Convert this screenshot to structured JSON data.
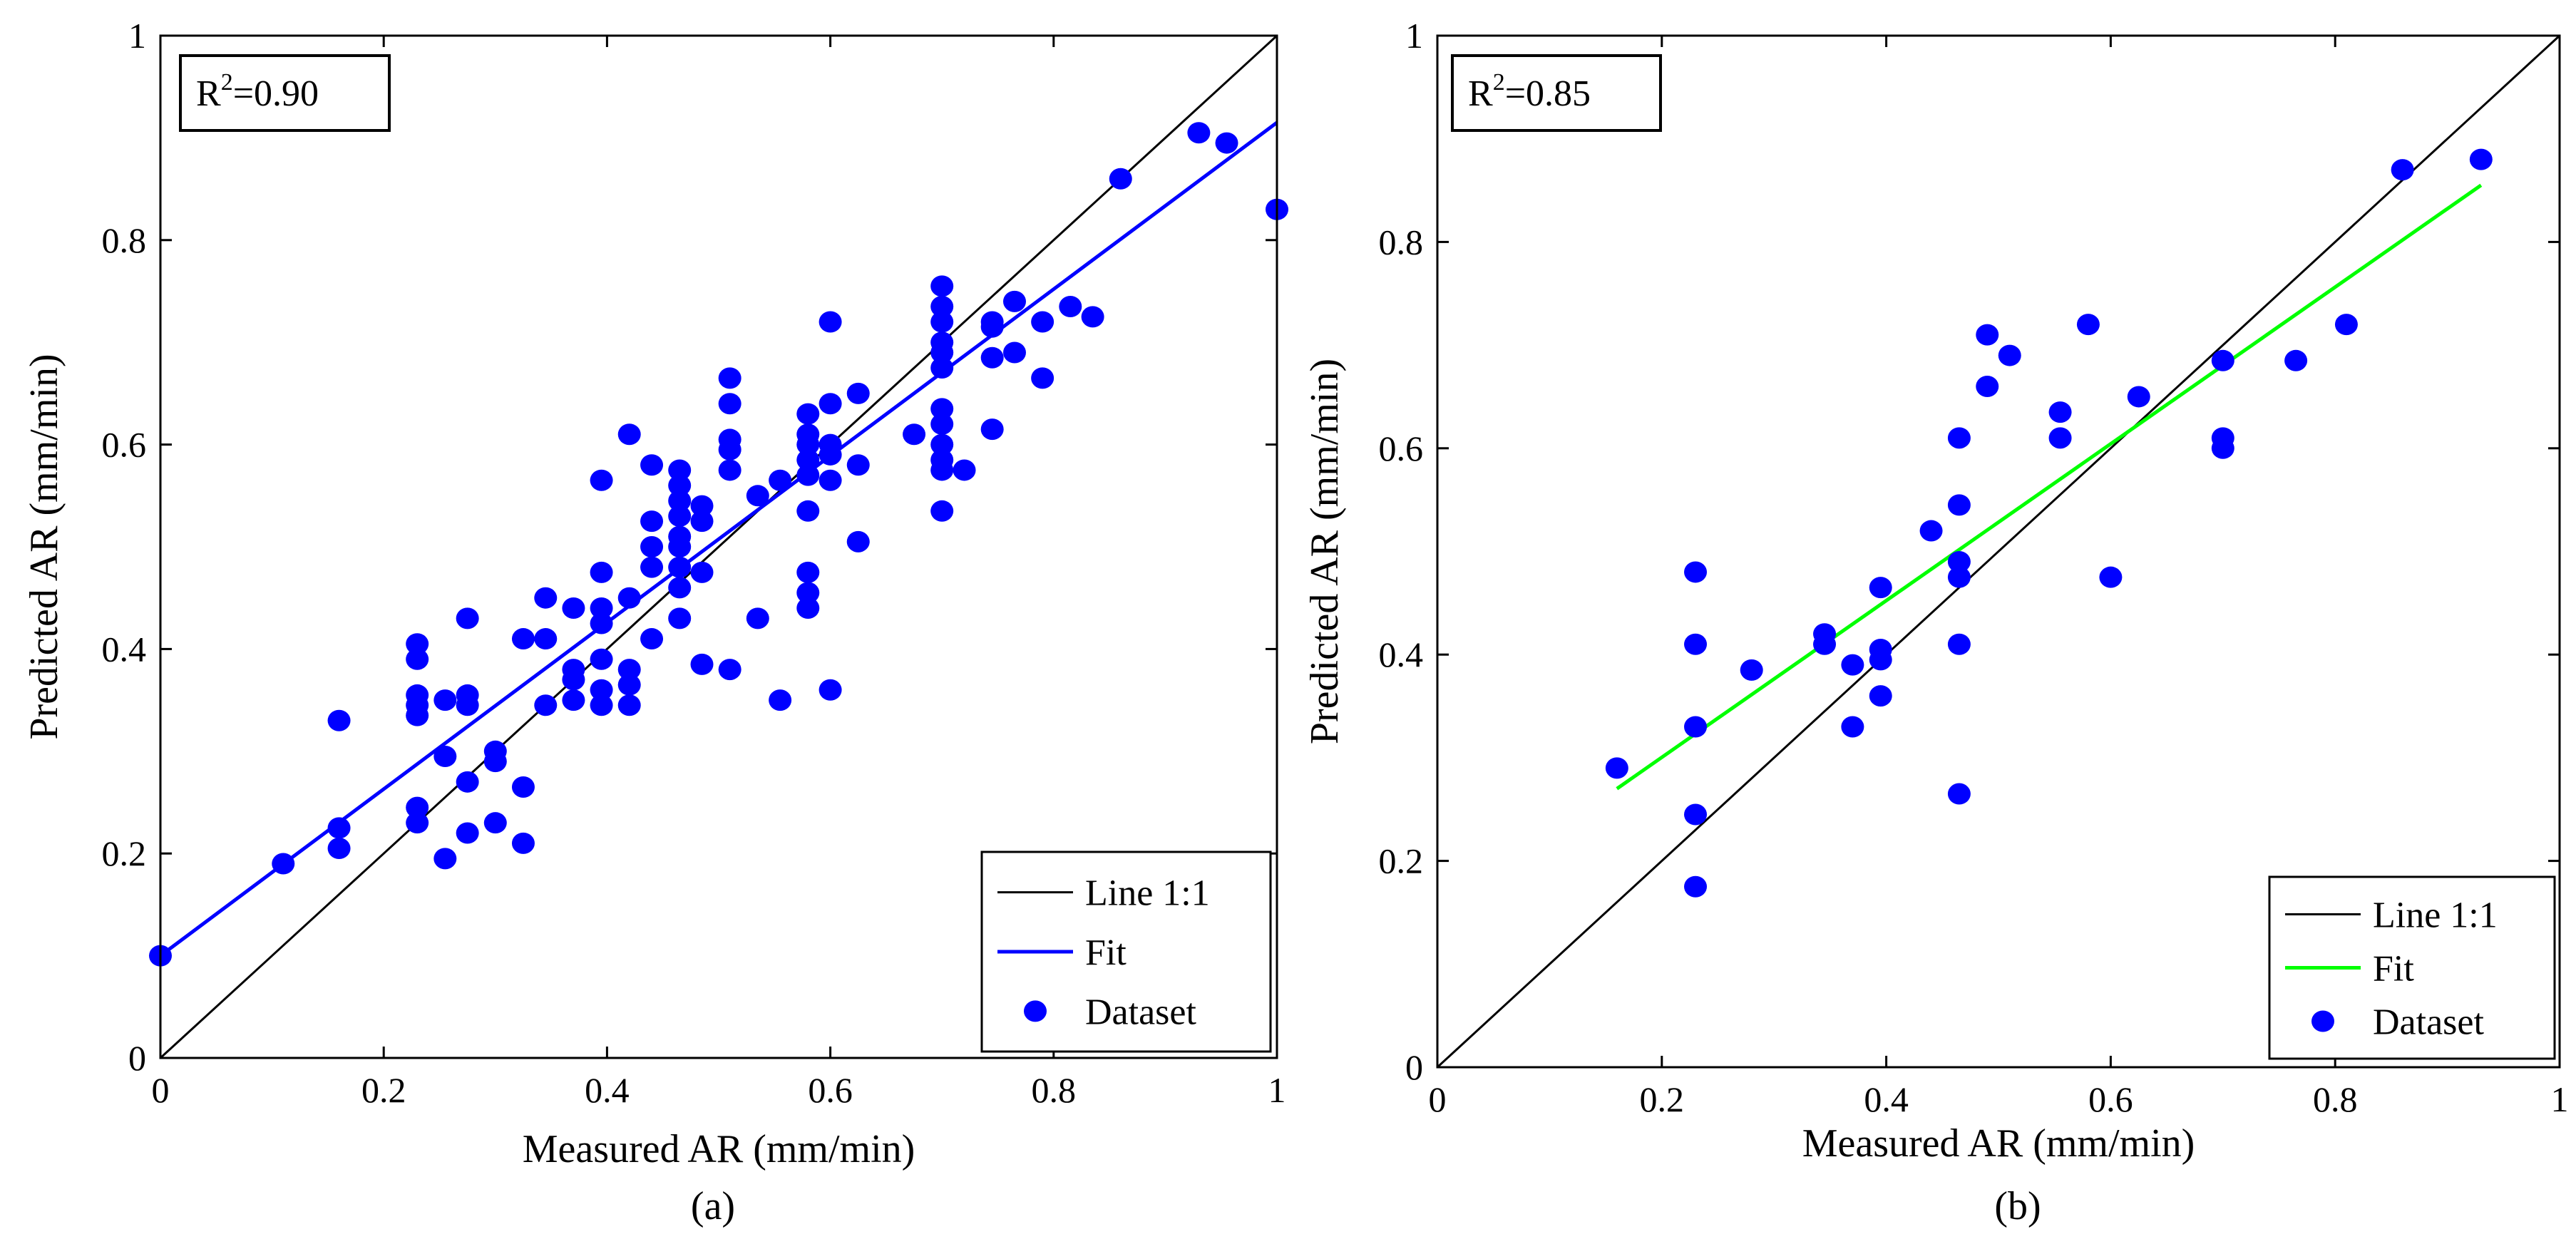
{
  "chart_data": [
    {
      "type": "scatter",
      "panel": "(a)",
      "xlabel": "Measured AR (mm/min)",
      "ylabel": "Predicted AR (mm/min)",
      "xlim": [
        0,
        1
      ],
      "ylim": [
        0,
        1
      ],
      "xticks": [
        "0",
        "0.2",
        "0.4",
        "0.6",
        "0.8",
        "1"
      ],
      "yticks": [
        "0",
        "0.2",
        "0.4",
        "0.6",
        "0.8",
        "1"
      ],
      "r2_label": "R",
      "r2_sup": "2",
      "r2_value": "=0.90",
      "legend_position": "bottom-right",
      "series": [
        {
          "name": "Line 1:1",
          "kind": "line",
          "color": "#000000",
          "x": [
            0,
            1
          ],
          "y": [
            0,
            1
          ]
        },
        {
          "name": "Fit",
          "kind": "line",
          "color": "#0000ff",
          "x": [
            0,
            1
          ],
          "y": [
            0.1,
            0.915
          ]
        },
        {
          "name": "Dataset",
          "kind": "scatter",
          "color": "#0000ff",
          "points": [
            [
              0.0,
              0.1
            ],
            [
              0.11,
              0.19
            ],
            [
              0.16,
              0.225
            ],
            [
              0.16,
              0.205
            ],
            [
              0.16,
              0.33
            ],
            [
              0.23,
              0.405
            ],
            [
              0.23,
              0.39
            ],
            [
              0.23,
              0.355
            ],
            [
              0.23,
              0.345
            ],
            [
              0.23,
              0.335
            ],
            [
              0.23,
              0.245
            ],
            [
              0.23,
              0.23
            ],
            [
              0.255,
              0.35
            ],
            [
              0.255,
              0.295
            ],
            [
              0.255,
              0.195
            ],
            [
              0.275,
              0.43
            ],
            [
              0.275,
              0.355
            ],
            [
              0.275,
              0.345
            ],
            [
              0.275,
              0.27
            ],
            [
              0.275,
              0.22
            ],
            [
              0.3,
              0.3
            ],
            [
              0.3,
              0.29
            ],
            [
              0.3,
              0.23
            ],
            [
              0.325,
              0.41
            ],
            [
              0.325,
              0.265
            ],
            [
              0.325,
              0.21
            ],
            [
              0.345,
              0.45
            ],
            [
              0.345,
              0.41
            ],
            [
              0.345,
              0.345
            ],
            [
              0.37,
              0.44
            ],
            [
              0.37,
              0.38
            ],
            [
              0.37,
              0.37
            ],
            [
              0.37,
              0.35
            ],
            [
              0.395,
              0.565
            ],
            [
              0.395,
              0.475
            ],
            [
              0.395,
              0.44
            ],
            [
              0.395,
              0.425
            ],
            [
              0.395,
              0.39
            ],
            [
              0.395,
              0.36
            ],
            [
              0.395,
              0.345
            ],
            [
              0.42,
              0.61
            ],
            [
              0.42,
              0.45
            ],
            [
              0.42,
              0.38
            ],
            [
              0.42,
              0.365
            ],
            [
              0.42,
              0.345
            ],
            [
              0.44,
              0.58
            ],
            [
              0.44,
              0.525
            ],
            [
              0.44,
              0.5
            ],
            [
              0.44,
              0.48
            ],
            [
              0.44,
              0.41
            ],
            [
              0.465,
              0.575
            ],
            [
              0.465,
              0.56
            ],
            [
              0.465,
              0.545
            ],
            [
              0.465,
              0.53
            ],
            [
              0.465,
              0.51
            ],
            [
              0.465,
              0.5
            ],
            [
              0.465,
              0.48
            ],
            [
              0.465,
              0.46
            ],
            [
              0.465,
              0.43
            ],
            [
              0.485,
              0.54
            ],
            [
              0.485,
              0.525
            ],
            [
              0.485,
              0.475
            ],
            [
              0.485,
              0.385
            ],
            [
              0.51,
              0.665
            ],
            [
              0.51,
              0.64
            ],
            [
              0.51,
              0.605
            ],
            [
              0.51,
              0.595
            ],
            [
              0.51,
              0.575
            ],
            [
              0.51,
              0.38
            ],
            [
              0.535,
              0.55
            ],
            [
              0.535,
              0.43
            ],
            [
              0.555,
              0.565
            ],
            [
              0.555,
              0.35
            ],
            [
              0.58,
              0.63
            ],
            [
              0.58,
              0.61
            ],
            [
              0.58,
              0.6
            ],
            [
              0.58,
              0.585
            ],
            [
              0.58,
              0.57
            ],
            [
              0.58,
              0.535
            ],
            [
              0.58,
              0.475
            ],
            [
              0.58,
              0.455
            ],
            [
              0.58,
              0.44
            ],
            [
              0.6,
              0.72
            ],
            [
              0.6,
              0.64
            ],
            [
              0.6,
              0.6
            ],
            [
              0.6,
              0.59
            ],
            [
              0.6,
              0.565
            ],
            [
              0.6,
              0.36
            ],
            [
              0.625,
              0.65
            ],
            [
              0.625,
              0.58
            ],
            [
              0.625,
              0.505
            ],
            [
              0.675,
              0.61
            ],
            [
              0.7,
              0.755
            ],
            [
              0.7,
              0.735
            ],
            [
              0.7,
              0.72
            ],
            [
              0.7,
              0.7
            ],
            [
              0.7,
              0.69
            ],
            [
              0.7,
              0.675
            ],
            [
              0.7,
              0.635
            ],
            [
              0.7,
              0.62
            ],
            [
              0.7,
              0.6
            ],
            [
              0.7,
              0.585
            ],
            [
              0.7,
              0.575
            ],
            [
              0.7,
              0.535
            ],
            [
              0.72,
              0.575
            ],
            [
              0.745,
              0.72
            ],
            [
              0.745,
              0.715
            ],
            [
              0.745,
              0.685
            ],
            [
              0.745,
              0.615
            ],
            [
              0.765,
              0.74
            ],
            [
              0.765,
              0.69
            ],
            [
              0.79,
              0.72
            ],
            [
              0.79,
              0.665
            ],
            [
              0.815,
              0.735
            ],
            [
              0.835,
              0.725
            ],
            [
              0.86,
              0.86
            ],
            [
              0.93,
              0.905
            ],
            [
              0.955,
              0.895
            ],
            [
              1.0,
              0.83
            ]
          ]
        }
      ]
    },
    {
      "type": "scatter",
      "panel": "(b)",
      "xlabel": "Measured AR (mm/min)",
      "ylabel": "Predicted AR (mm/min)",
      "xlim": [
        0,
        1
      ],
      "ylim": [
        0,
        1
      ],
      "xticks": [
        "0",
        "0.2",
        "0.4",
        "0.6",
        "0.8",
        "1"
      ],
      "yticks": [
        "0",
        "0.2",
        "0.4",
        "0.6",
        "0.8",
        "1"
      ],
      "r2_label": "R",
      "r2_sup": "2",
      "r2_value": "=0.85",
      "legend_position": "bottom-right",
      "series": [
        {
          "name": "Line 1:1",
          "kind": "line",
          "color": "#000000",
          "x": [
            0,
            1
          ],
          "y": [
            0,
            1
          ]
        },
        {
          "name": "Fit",
          "kind": "line",
          "color": "#00ff00",
          "x": [
            0.16,
            0.93
          ],
          "y": [
            0.27,
            0.855
          ]
        },
        {
          "name": "Dataset",
          "kind": "scatter",
          "color": "#0000ff",
          "points": [
            [
              0.16,
              0.29
            ],
            [
              0.23,
              0.48
            ],
            [
              0.23,
              0.41
            ],
            [
              0.23,
              0.33
            ],
            [
              0.23,
              0.245
            ],
            [
              0.23,
              0.175
            ],
            [
              0.28,
              0.385
            ],
            [
              0.345,
              0.42
            ],
            [
              0.345,
              0.41
            ],
            [
              0.37,
              0.39
            ],
            [
              0.37,
              0.33
            ],
            [
              0.395,
              0.465
            ],
            [
              0.395,
              0.405
            ],
            [
              0.395,
              0.395
            ],
            [
              0.395,
              0.36
            ],
            [
              0.44,
              0.52
            ],
            [
              0.465,
              0.61
            ],
            [
              0.465,
              0.545
            ],
            [
              0.465,
              0.49
            ],
            [
              0.465,
              0.475
            ],
            [
              0.465,
              0.41
            ],
            [
              0.465,
              0.265
            ],
            [
              0.49,
              0.71
            ],
            [
              0.49,
              0.66
            ],
            [
              0.51,
              0.69
            ],
            [
              0.555,
              0.635
            ],
            [
              0.555,
              0.61
            ],
            [
              0.58,
              0.72
            ],
            [
              0.6,
              0.475
            ],
            [
              0.625,
              0.65
            ],
            [
              0.7,
              0.685
            ],
            [
              0.7,
              0.61
            ],
            [
              0.7,
              0.6
            ],
            [
              0.765,
              0.685
            ],
            [
              0.81,
              0.72
            ],
            [
              0.86,
              0.87
            ],
            [
              0.93,
              0.88
            ]
          ]
        }
      ]
    }
  ],
  "colors": {
    "axis": "#000000",
    "dataset": "#0000ff",
    "fit_a": "#0000ff",
    "fit_b": "#00ff00"
  }
}
